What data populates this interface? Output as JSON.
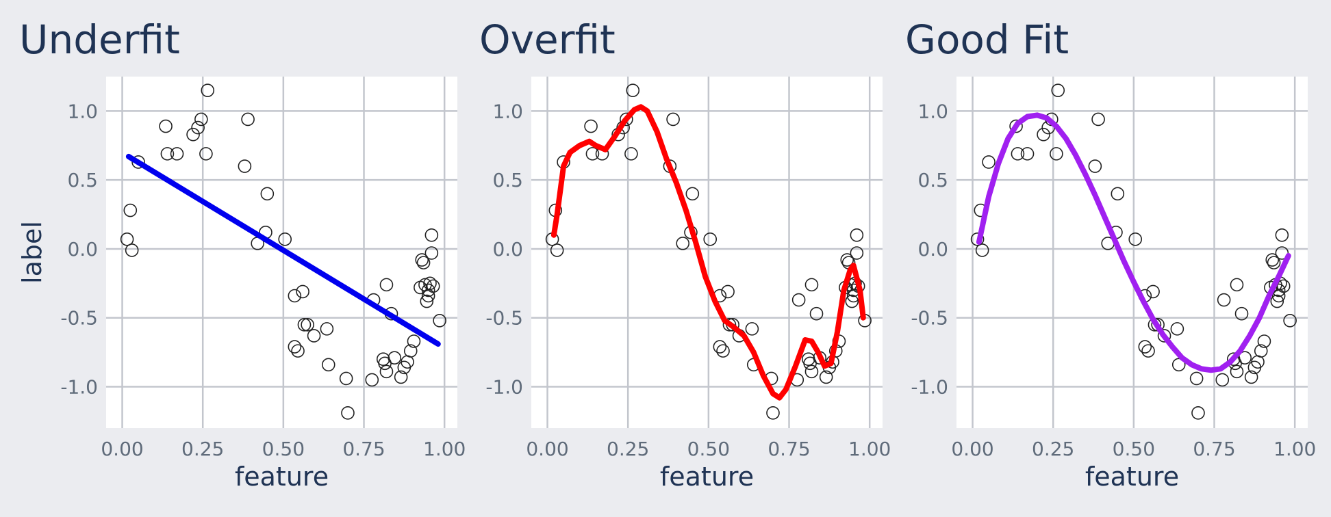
{
  "chart_data": [
    {
      "type": "scatter",
      "title": "Underfit",
      "xlabel": "feature",
      "ylabel": "label",
      "xlim": [
        -0.05,
        1.04
      ],
      "ylim": [
        -1.3,
        1.25
      ],
      "xticks": [
        0.0,
        0.25,
        0.5,
        0.75,
        1.0
      ],
      "xtick_labels": [
        "0.00",
        "0.25",
        "0.50",
        "0.75",
        "1.00"
      ],
      "yticks": [
        1.0,
        0.5,
        0.0,
        -0.5,
        -1.0
      ],
      "ytick_labels": [
        "1.0",
        "0.5",
        "0.0",
        "-0.5",
        "-1.0"
      ],
      "grid": true,
      "fit": {
        "color": "#0000ee",
        "x": [
          0.02,
          0.98
        ],
        "y": [
          0.67,
          -0.69
        ]
      }
    },
    {
      "type": "scatter",
      "title": "Overfit",
      "xlabel": "feature",
      "ylabel": "",
      "xlim": [
        -0.05,
        1.04
      ],
      "ylim": [
        -1.3,
        1.25
      ],
      "xticks": [
        0.0,
        0.25,
        0.5,
        0.75,
        1.0
      ],
      "xtick_labels": [
        "0.00",
        "0.25",
        "0.50",
        "0.75",
        "1.00"
      ],
      "yticks": [
        1.0,
        0.5,
        0.0,
        -0.5,
        -1.0
      ],
      "ytick_labels": [
        "1.0",
        "0.5",
        "0.0",
        "-0.5",
        "-1.0"
      ],
      "grid": true,
      "fit": {
        "color": "#ff0000",
        "x": [
          0.02,
          0.03,
          0.05,
          0.07,
          0.1,
          0.13,
          0.15,
          0.18,
          0.21,
          0.24,
          0.27,
          0.29,
          0.31,
          0.34,
          0.37,
          0.4,
          0.43,
          0.46,
          0.49,
          0.52,
          0.55,
          0.58,
          0.61,
          0.64,
          0.67,
          0.7,
          0.72,
          0.74,
          0.77,
          0.8,
          0.82,
          0.84,
          0.86,
          0.88,
          0.9,
          0.92,
          0.94,
          0.95,
          0.97,
          0.98
        ],
        "y": [
          0.1,
          0.25,
          0.6,
          0.7,
          0.75,
          0.78,
          0.75,
          0.72,
          0.82,
          0.93,
          1.01,
          1.03,
          1.0,
          0.85,
          0.65,
          0.48,
          0.28,
          0.05,
          -0.2,
          -0.38,
          -0.52,
          -0.57,
          -0.63,
          -0.75,
          -0.92,
          -1.05,
          -1.08,
          -1.02,
          -0.85,
          -0.66,
          -0.67,
          -0.75,
          -0.85,
          -0.83,
          -0.6,
          -0.3,
          -0.15,
          -0.12,
          -0.3,
          -0.5
        ]
      }
    },
    {
      "type": "scatter",
      "title": "Good Fit",
      "xlabel": "feature",
      "ylabel": "",
      "xlim": [
        -0.05,
        1.04
      ],
      "ylim": [
        -1.3,
        1.25
      ],
      "xticks": [
        0.0,
        0.25,
        0.5,
        0.75,
        1.0
      ],
      "xtick_labels": [
        "0.00",
        "0.25",
        "0.50",
        "0.75",
        "1.00"
      ],
      "yticks": [
        1.0,
        0.5,
        0.0,
        -0.5,
        -1.0
      ],
      "ytick_labels": [
        "1.0",
        "0.5",
        "0.0",
        "-0.5",
        "-1.0"
      ],
      "grid": true,
      "fit": {
        "color": "#a020f0",
        "x": [
          0.02,
          0.05,
          0.08,
          0.11,
          0.14,
          0.17,
          0.2,
          0.23,
          0.26,
          0.29,
          0.32,
          0.35,
          0.38,
          0.41,
          0.44,
          0.47,
          0.5,
          0.53,
          0.56,
          0.59,
          0.62,
          0.65,
          0.68,
          0.71,
          0.74,
          0.77,
          0.8,
          0.83,
          0.86,
          0.89,
          0.92,
          0.95,
          0.98
        ],
        "y": [
          0.05,
          0.38,
          0.62,
          0.8,
          0.91,
          0.96,
          0.97,
          0.95,
          0.89,
          0.8,
          0.68,
          0.54,
          0.39,
          0.23,
          0.07,
          -0.09,
          -0.24,
          -0.38,
          -0.51,
          -0.62,
          -0.71,
          -0.79,
          -0.84,
          -0.87,
          -0.88,
          -0.87,
          -0.82,
          -0.74,
          -0.63,
          -0.5,
          -0.34,
          -0.2,
          -0.05
        ]
      }
    }
  ],
  "points": {
    "x": [
      0.015,
      0.025,
      0.03,
      0.05,
      0.135,
      0.14,
      0.17,
      0.22,
      0.235,
      0.245,
      0.26,
      0.265,
      0.38,
      0.39,
      0.42,
      0.445,
      0.45,
      0.505,
      0.535,
      0.535,
      0.545,
      0.56,
      0.565,
      0.575,
      0.595,
      0.635,
      0.64,
      0.695,
      0.7,
      0.775,
      0.78,
      0.81,
      0.815,
      0.82,
      0.82,
      0.835,
      0.845,
      0.865,
      0.875,
      0.885,
      0.895,
      0.905,
      0.925,
      0.93,
      0.935,
      0.94,
      0.945,
      0.95,
      0.95,
      0.955,
      0.96,
      0.96,
      0.965,
      0.985
    ],
    "y": [
      0.07,
      0.28,
      -0.01,
      0.63,
      0.89,
      0.69,
      0.69,
      0.83,
      0.88,
      0.94,
      0.69,
      1.15,
      0.6,
      0.94,
      0.04,
      0.12,
      0.4,
      0.07,
      -0.34,
      -0.71,
      -0.74,
      -0.31,
      -0.55,
      -0.55,
      -0.63,
      -0.58,
      -0.84,
      -0.94,
      -1.19,
      -0.95,
      -0.37,
      -0.8,
      -0.83,
      -0.89,
      -0.26,
      -0.47,
      -0.79,
      -0.93,
      -0.86,
      -0.82,
      -0.74,
      -0.67,
      -0.28,
      -0.08,
      -0.1,
      -0.26,
      -0.38,
      -0.34,
      -0.3,
      -0.25,
      0.1,
      -0.03,
      -0.27,
      -0.52
    ]
  }
}
